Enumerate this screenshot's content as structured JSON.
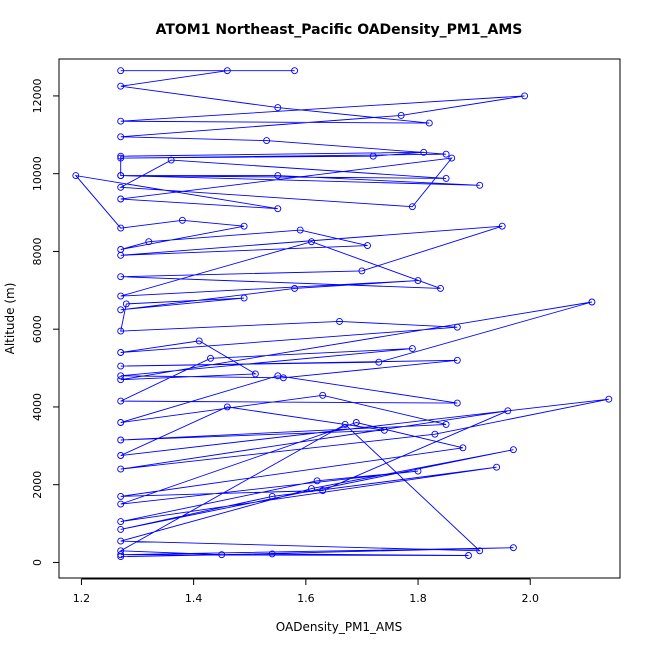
{
  "chart_data": {
    "type": "line",
    "title": "ATOM1 Northeast_Pacific OADensity_PM1_AMS",
    "xlabel": "OADensity_PM1_AMS",
    "ylabel": "Altitude (m)",
    "xlim": [
      1.16,
      2.16
    ],
    "ylim": [
      -400,
      12950
    ],
    "xticks": [
      "1.2",
      "1.4",
      "1.6",
      "1.8",
      "2.0"
    ],
    "yticks": [
      "0",
      "2000",
      "4000",
      "6000",
      "8000",
      "10000",
      "12000"
    ],
    "grid": false,
    "legend": "none",
    "series_color": "#0000ff",
    "marker": "open-circle",
    "series": [
      {
        "x": [
          1.27,
          1.58,
          1.46,
          1.27,
          1.55,
          1.82,
          1.27,
          1.99,
          1.77,
          1.27,
          1.53,
          1.85,
          1.27,
          1.72,
          1.81,
          1.27,
          1.27,
          1.55,
          1.91,
          1.27,
          1.85,
          1.36,
          1.27,
          1.79,
          1.86,
          1.27,
          1.55,
          1.19,
          1.27,
          1.38,
          1.49,
          1.27,
          1.32,
          1.59,
          1.71,
          1.27,
          1.95,
          1.7,
          1.27,
          1.84,
          1.61,
          1.27,
          1.8,
          1.58,
          1.27,
          1.49,
          1.28,
          1.27,
          1.66,
          1.87,
          1.27,
          1.41,
          1.51,
          1.27,
          2.11,
          1.73,
          1.27,
          1.87,
          1.56,
          1.27,
          1.79,
          1.43,
          1.27,
          1.87,
          1.55,
          1.27,
          1.63,
          1.85,
          1.27,
          1.74,
          1.46,
          1.27,
          2.14,
          1.83,
          1.27,
          1.96,
          1.63,
          1.27,
          1.88,
          1.69,
          1.27,
          1.8,
          1.62,
          1.27,
          1.94,
          1.54,
          1.27,
          1.97,
          1.61,
          1.27,
          1.91,
          1.67,
          1.27,
          1.45,
          1.97,
          1.27,
          1.89,
          1.54,
          1.27
        ],
        "y": [
          12650,
          12650,
          12650,
          12250,
          11700,
          11300,
          11350,
          12000,
          11500,
          10950,
          10850,
          10500,
          10400,
          10450,
          10550,
          10450,
          9950,
          9950,
          9700,
          9950,
          9880,
          10350,
          9650,
          9150,
          10400,
          9350,
          9100,
          9950,
          8600,
          8800,
          8650,
          8050,
          8250,
          8550,
          8150,
          7900,
          8650,
          7500,
          7350,
          7050,
          8250,
          6850,
          7250,
          7050,
          6500,
          6800,
          6650,
          5950,
          6200,
          6050,
          5400,
          5700,
          4850,
          4700,
          6700,
          5150,
          5050,
          5200,
          4750,
          4800,
          5500,
          5250,
          4150,
          4100,
          4800,
          3600,
          4300,
          3550,
          3150,
          3400,
          4000,
          2750,
          4200,
          3300,
          2400,
          3900,
          1850,
          1700,
          2950,
          3600,
          1500,
          2350,
          2100,
          1050,
          2450,
          1700,
          850,
          2900,
          1900,
          550,
          300,
          3550,
          300,
          200,
          380,
          200,
          180,
          220,
          150
        ]
      }
    ]
  }
}
